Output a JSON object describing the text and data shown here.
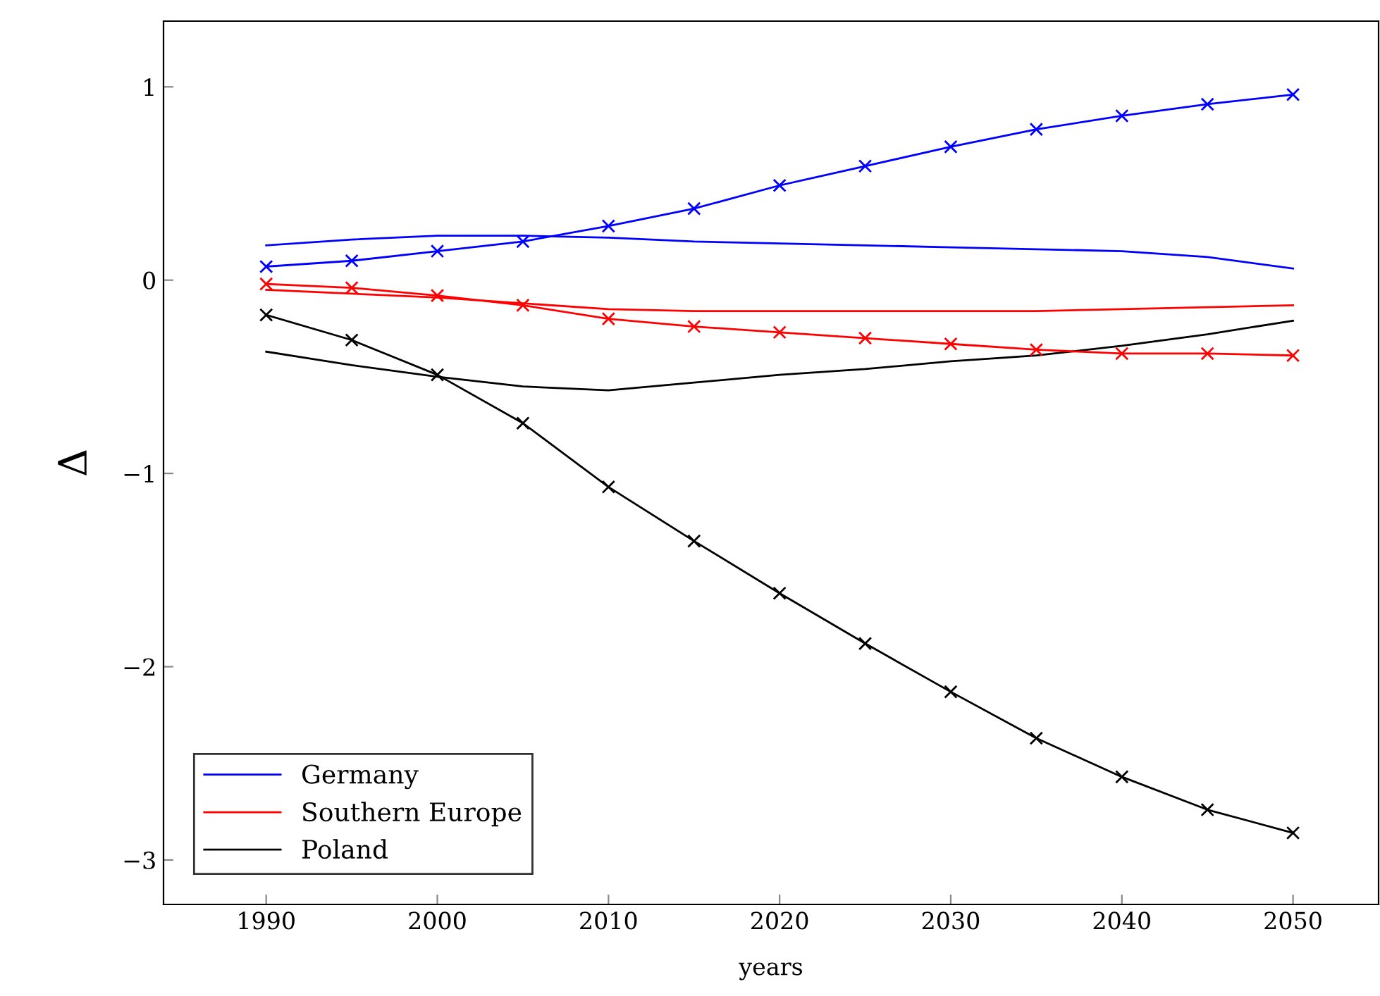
{
  "chart_data": {
    "type": "line",
    "xlabel": "years",
    "ylabel": "Δ",
    "xlim": [
      1984,
      2055
    ],
    "ylim": [
      -3.23,
      1.34
    ],
    "xticks": [
      1990,
      2000,
      2010,
      2020,
      2030,
      2040,
      2050
    ],
    "yticks": [
      {
        "value": -3,
        "label": "−3"
      },
      {
        "value": -2,
        "label": "−2"
      },
      {
        "value": -1,
        "label": "−1"
      },
      0,
      1
    ],
    "x": [
      1990,
      1995,
      2000,
      2005,
      2010,
      2015,
      2020,
      2025,
      2030,
      2035,
      2040,
      2045,
      2050
    ],
    "grid": false,
    "legend": "bottom left",
    "series": [
      {
        "name": "Germany",
        "color": "#0000ff",
        "marker": "none",
        "values": [
          0.18,
          0.21,
          0.23,
          0.23,
          0.22,
          0.2,
          0.19,
          0.18,
          0.17,
          0.16,
          0.15,
          0.12,
          0.06
        ]
      },
      {
        "name": "Southern Europe",
        "color": "#ff0000",
        "marker": "none",
        "values": [
          -0.05,
          -0.07,
          -0.09,
          -0.12,
          -0.15,
          -0.16,
          -0.16,
          -0.16,
          -0.16,
          -0.16,
          -0.15,
          -0.14,
          -0.13
        ]
      },
      {
        "name": "Poland",
        "color": "#000000",
        "marker": "none",
        "values": [
          -0.37,
          -0.44,
          -0.5,
          -0.55,
          -0.57,
          -0.53,
          -0.49,
          -0.46,
          -0.42,
          -0.39,
          -0.34,
          -0.28,
          -0.21
        ]
      },
      {
        "color": "#0000ff",
        "marker": "cross",
        "values": [
          0.07,
          0.1,
          0.15,
          0.2,
          0.28,
          0.37,
          0.49,
          0.59,
          0.69,
          0.78,
          0.85,
          0.91,
          0.96
        ]
      },
      {
        "color": "#ff0000",
        "marker": "cross",
        "values": [
          -0.02,
          -0.04,
          -0.08,
          -0.13,
          -0.2,
          -0.24,
          -0.27,
          -0.3,
          -0.33,
          -0.36,
          -0.38,
          -0.38,
          -0.39
        ]
      },
      {
        "color": "#000000",
        "marker": "cross",
        "values": [
          -0.18,
          -0.31,
          -0.49,
          -0.74,
          -1.07,
          -1.35,
          -1.62,
          -1.88,
          -2.13,
          -2.37,
          -2.57,
          -2.74,
          -2.86
        ]
      }
    ]
  }
}
